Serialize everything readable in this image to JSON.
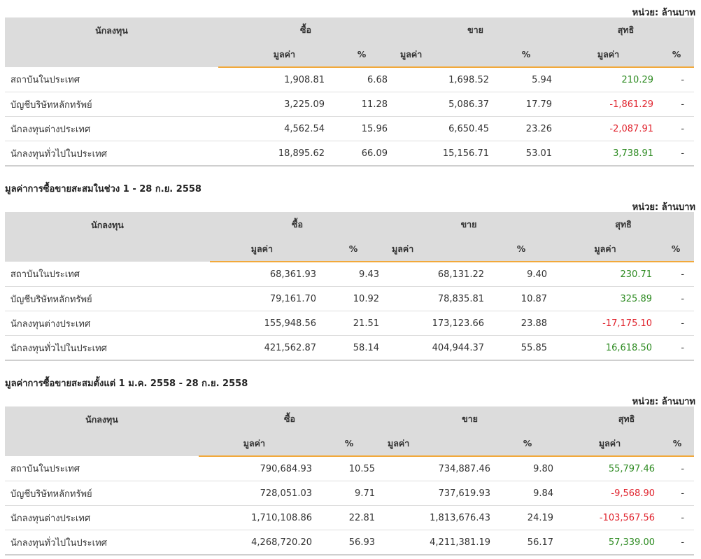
{
  "unit_label": "หน่วย: ล้านบาท",
  "headers": {
    "investor": "นักลงทุน",
    "buy": "ซื้อ",
    "sell": "ขาย",
    "net": "สุทธิ",
    "value": "มูลค่า",
    "pct": "%"
  },
  "sections": [
    {
      "title": "",
      "rows": [
        {
          "name": "สถาบันในประเทศ",
          "buy_value": "1,908.81",
          "buy_pct": "6.68",
          "sell_value": "1,698.52",
          "sell_pct": "5.94",
          "net_value": "210.29",
          "net_pct": "-"
        },
        {
          "name": "บัญชีบริษัทหลักทรัพย์",
          "buy_value": "3,225.09",
          "buy_pct": "11.28",
          "sell_value": "5,086.37",
          "sell_pct": "17.79",
          "net_value": "-1,861.29",
          "net_pct": "-"
        },
        {
          "name": "นักลงทุนต่างประเทศ",
          "buy_value": "4,562.54",
          "buy_pct": "15.96",
          "sell_value": "6,650.45",
          "sell_pct": "23.26",
          "net_value": "-2,087.91",
          "net_pct": "-"
        },
        {
          "name": "นักลงทุนทั่วไปในประเทศ",
          "buy_value": "18,895.62",
          "buy_pct": "66.09",
          "sell_value": "15,156.71",
          "sell_pct": "53.01",
          "net_value": "3,738.91",
          "net_pct": "-"
        }
      ]
    },
    {
      "title": "มูลค่าการซื้อขายสะสมในช่วง 1 - 28 ก.ย. 2558",
      "rows": [
        {
          "name": "สถาบันในประเทศ",
          "buy_value": "68,361.93",
          "buy_pct": "9.43",
          "sell_value": "68,131.22",
          "sell_pct": "9.40",
          "net_value": "230.71",
          "net_pct": "-"
        },
        {
          "name": "บัญชีบริษัทหลักทรัพย์",
          "buy_value": "79,161.70",
          "buy_pct": "10.92",
          "sell_value": "78,835.81",
          "sell_pct": "10.87",
          "net_value": "325.89",
          "net_pct": "-"
        },
        {
          "name": "นักลงทุนต่างประเทศ",
          "buy_value": "155,948.56",
          "buy_pct": "21.51",
          "sell_value": "173,123.66",
          "sell_pct": "23.88",
          "net_value": "-17,175.10",
          "net_pct": "-"
        },
        {
          "name": "นักลงทุนทั่วไปในประเทศ",
          "buy_value": "421,562.87",
          "buy_pct": "58.14",
          "sell_value": "404,944.37",
          "sell_pct": "55.85",
          "net_value": "16,618.50",
          "net_pct": "-"
        }
      ]
    },
    {
      "title": "มูลค่าการซื้อขายสะสมตั้งแต่ 1 ม.ค. 2558 - 28 ก.ย. 2558",
      "rows": [
        {
          "name": "สถาบันในประเทศ",
          "buy_value": "790,684.93",
          "buy_pct": "10.55",
          "sell_value": "734,887.46",
          "sell_pct": "9.80",
          "net_value": "55,797.46",
          "net_pct": "-"
        },
        {
          "name": "บัญชีบริษัทหลักทรัพย์",
          "buy_value": "728,051.03",
          "buy_pct": "9.71",
          "sell_value": "737,619.93",
          "sell_pct": "9.84",
          "net_value": "-9,568.90",
          "net_pct": "-"
        },
        {
          "name": "นักลงทุนต่างประเทศ",
          "buy_value": "1,710,108.86",
          "buy_pct": "22.81",
          "sell_value": "1,813,676.43",
          "sell_pct": "24.19",
          "net_value": "-103,567.56",
          "net_pct": "-"
        },
        {
          "name": "นักลงทุนทั่วไปในประเทศ",
          "buy_value": "4,268,720.20",
          "buy_pct": "56.93",
          "sell_value": "4,211,381.19",
          "sell_pct": "56.17",
          "net_value": "57,339.00",
          "net_pct": "-"
        }
      ]
    }
  ],
  "colors": {
    "positive": "#2e8b22",
    "negative": "#e0242e",
    "header_bg": "#dcdcdc",
    "accent_underline": "#f2a93b"
  }
}
